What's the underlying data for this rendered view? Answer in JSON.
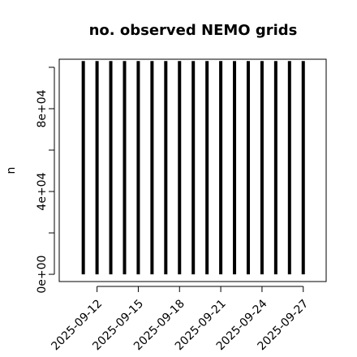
{
  "chart_data": {
    "type": "bar",
    "title": "no. observed NEMO grids",
    "y_label": "n",
    "x": [
      "2025-09-11",
      "2025-09-12",
      "2025-09-13",
      "2025-09-14",
      "2025-09-15",
      "2025-09-16",
      "2025-09-17",
      "2025-09-18",
      "2025-09-19",
      "2025-09-20",
      "2025-09-21",
      "2025-09-22",
      "2025-09-23",
      "2025-09-24",
      "2025-09-25",
      "2025-09-26",
      "2025-09-27"
    ],
    "values": [
      103000,
      103000,
      103000,
      103000,
      103000,
      103000,
      103000,
      103000,
      103000,
      103000,
      103000,
      103000,
      103000,
      103000,
      103000,
      103000,
      103000
    ],
    "color": "#000000",
    "xlim": [
      "2025-09-09T06:00",
      "2025-09-28T16:00"
    ],
    "xticks": [
      "2025-09-12",
      "2025-09-15",
      "2025-09-18",
      "2025-09-21",
      "2025-09-24",
      "2025-09-27"
    ],
    "ylim": [
      -3500,
      103900
    ],
    "yticks": [
      {
        "value": 0,
        "label": "0e+00"
      },
      {
        "value": 20000,
        "label": null
      },
      {
        "value": 40000,
        "label": "4e+04"
      },
      {
        "value": 60000,
        "label": null
      },
      {
        "value": 80000,
        "label": "8e+04"
      },
      {
        "value": 100000,
        "label": null
      }
    ]
  }
}
